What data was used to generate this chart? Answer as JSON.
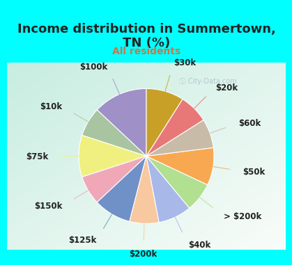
{
  "title": "Income distribution in Summertown,\nTN (%)",
  "subtitle": "All residents",
  "background_cyan": "#00FFFF",
  "background_chart_tl": "#c8ede0",
  "background_chart_br": "#e8f8f0",
  "labels": [
    "$100k",
    "$10k",
    "$75k",
    "$150k",
    "$125k",
    "$200k",
    "$40k",
    "> $200k",
    "$50k",
    "$60k",
    "$20k",
    "$30k"
  ],
  "values": [
    13,
    7,
    10,
    7,
    9,
    7,
    8,
    7,
    9,
    7,
    7,
    9
  ],
  "colors": [
    "#a090c8",
    "#a8c4a0",
    "#f0f080",
    "#f0a8b8",
    "#7090c8",
    "#f8c8a0",
    "#a8b8e8",
    "#b0e090",
    "#f8a850",
    "#c8bca8",
    "#e87878",
    "#c8a028"
  ],
  "title_fontsize": 13,
  "subtitle_fontsize": 10,
  "subtitle_color": "#cc7744",
  "title_color": "#222222",
  "label_color": "#222222",
  "label_fontsize": 8.5,
  "startangle": 90,
  "line_colors": [
    "#a090c8",
    "#a8c4a0",
    "#f0f080",
    "#f0a8b8",
    "#7090c8",
    "#f8c8a0",
    "#a8b8e8",
    "#b0e090",
    "#f8a850",
    "#c8bca8",
    "#e87878",
    "#c8a028"
  ]
}
